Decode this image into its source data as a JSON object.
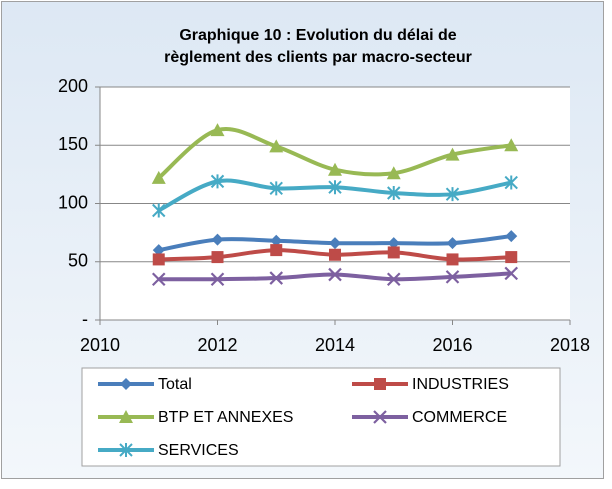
{
  "chart_data": {
    "type": "line",
    "title": [
      "Graphique 10 : Evolution du délai de",
      "règlement des clients par macro-secteur"
    ],
    "x": [
      2011,
      2012,
      2013,
      2014,
      2015,
      2016,
      2017
    ],
    "series": [
      {
        "name": "Total",
        "color": "#4a7ebb",
        "marker": "diamond",
        "values": [
          60,
          69,
          68,
          66,
          66,
          66,
          72
        ]
      },
      {
        "name": "INDUSTRIES",
        "color": "#be4b48",
        "marker": "square",
        "values": [
          52,
          54,
          60,
          56,
          58,
          52,
          54
        ]
      },
      {
        "name": "BTP ET ANNEXES",
        "color": "#98b954",
        "marker": "triangle",
        "values": [
          122,
          163,
          149,
          129,
          126,
          142,
          150
        ]
      },
      {
        "name": "COMMERCE",
        "color": "#7d60a0",
        "marker": "x",
        "values": [
          35,
          35,
          36,
          39,
          35,
          37,
          40
        ]
      },
      {
        "name": "SERVICES",
        "color": "#46aac5",
        "marker": "asterisk",
        "values": [
          94,
          119,
          113,
          114,
          109,
          108,
          118
        ]
      }
    ],
    "xlim": [
      2010,
      2018
    ],
    "xticks": [
      2010,
      2012,
      2014,
      2016,
      2018
    ],
    "ylim": [
      0,
      200
    ],
    "yticks": [
      {
        "value": 0,
        "label": "-"
      },
      50,
      100,
      150,
      200
    ],
    "grid": true,
    "legend": "bottom"
  }
}
